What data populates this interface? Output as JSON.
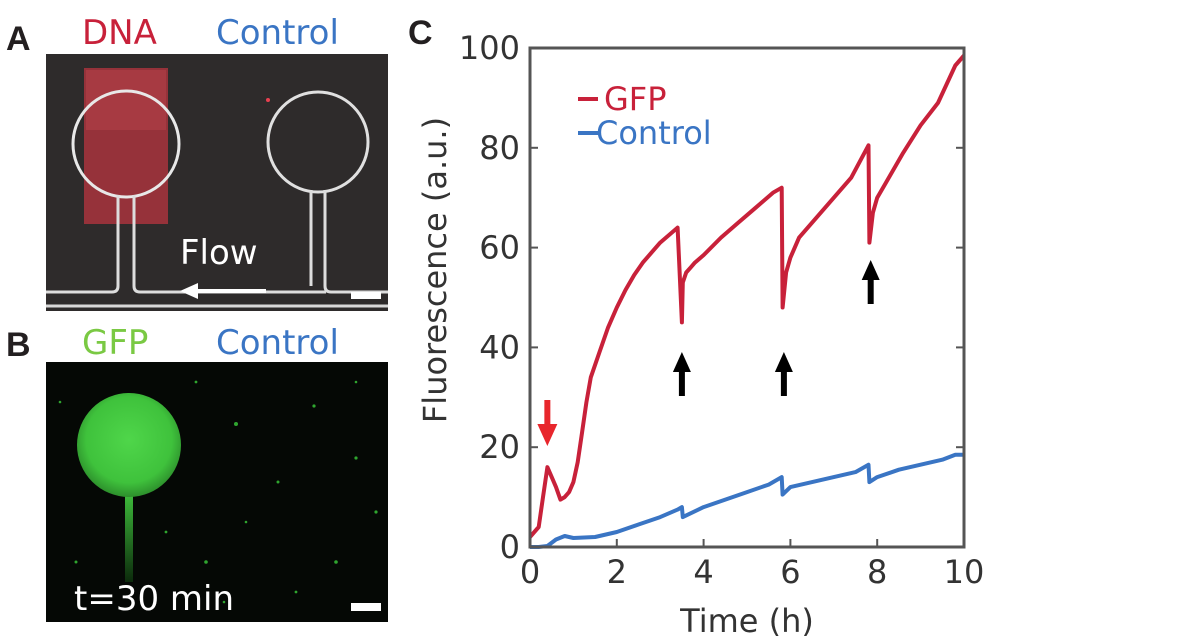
{
  "panel_a": {
    "letter": "A",
    "label_left": "DNA",
    "label_right": "Control",
    "flow_label": "Flow",
    "colors": {
      "left": "#c8213a",
      "right": "#3a75c4"
    }
  },
  "panel_b": {
    "letter": "B",
    "label_left": "GFP",
    "label_right": "Control",
    "time_label": "t=30 min",
    "colors": {
      "left": "#7ac943",
      "right": "#3a75c4"
    }
  },
  "panel_c": {
    "letter": "C"
  },
  "chart_data": {
    "type": "line",
    "title": "",
    "xlabel": "Time (h)",
    "ylabel": "Fluorescence (a.u.)",
    "xlim": [
      0,
      10
    ],
    "ylim": [
      0,
      100
    ],
    "xticks": [
      0,
      2,
      4,
      6,
      8,
      10
    ],
    "yticks": [
      0,
      20,
      40,
      60,
      80,
      100
    ],
    "legend": "top-left",
    "series": [
      {
        "name": "GFP",
        "color": "#c8213a",
        "x": [
          0,
          0.2,
          0.3,
          0.4,
          0.5,
          0.6,
          0.7,
          0.8,
          0.9,
          1.0,
          1.1,
          1.2,
          1.3,
          1.4,
          1.6,
          1.8,
          2.0,
          2.2,
          2.4,
          2.6,
          2.8,
          3.0,
          3.2,
          3.4,
          3.5,
          3.52,
          3.6,
          3.7,
          3.8,
          4.0,
          4.4,
          4.8,
          5.2,
          5.6,
          5.8,
          5.82,
          5.9,
          6.0,
          6.2,
          6.6,
          7.0,
          7.4,
          7.8,
          7.82,
          7.9,
          8.0,
          8.2,
          8.6,
          9.0,
          9.4,
          9.8,
          10.0
        ],
        "values": [
          2,
          4,
          10,
          16,
          14,
          12,
          9.5,
          10,
          11,
          13,
          17,
          23,
          29,
          34,
          39,
          44,
          48,
          51.5,
          54.5,
          57,
          59,
          61,
          62.5,
          64,
          45,
          53,
          55,
          56,
          57,
          58.5,
          62,
          65,
          68,
          71,
          72,
          48,
          55,
          58,
          62,
          66,
          70,
          74,
          80.5,
          61,
          67,
          70,
          73,
          79,
          84.5,
          89,
          96.5,
          98.5
        ]
      },
      {
        "name": "Control",
        "color": "#3a75c4",
        "x": [
          0,
          0.2,
          0.4,
          0.6,
          0.8,
          1.0,
          1.5,
          2.0,
          2.5,
          3.0,
          3.4,
          3.5,
          3.52,
          4.0,
          4.5,
          5.0,
          5.5,
          5.8,
          5.82,
          6.0,
          6.5,
          7.0,
          7.5,
          7.8,
          7.82,
          8.0,
          8.5,
          9.0,
          9.5,
          9.8,
          10.0
        ],
        "values": [
          0,
          0,
          0.2,
          1.5,
          2.2,
          1.8,
          2,
          3,
          4.5,
          6,
          7.5,
          8,
          6,
          8,
          9.5,
          11,
          12.5,
          14,
          10.5,
          12,
          13,
          14,
          15,
          16.5,
          13,
          14,
          15.5,
          16.5,
          17.5,
          18.5,
          18.5
        ]
      }
    ],
    "annotations": [
      {
        "type": "arrow-down",
        "x": 0.4,
        "color": "#e8262c"
      },
      {
        "type": "arrow-up",
        "x": 3.5,
        "color": "#000000"
      },
      {
        "type": "arrow-up",
        "x": 5.85,
        "color": "#000000"
      },
      {
        "type": "arrow-up",
        "x": 7.85,
        "color": "#000000"
      }
    ]
  }
}
